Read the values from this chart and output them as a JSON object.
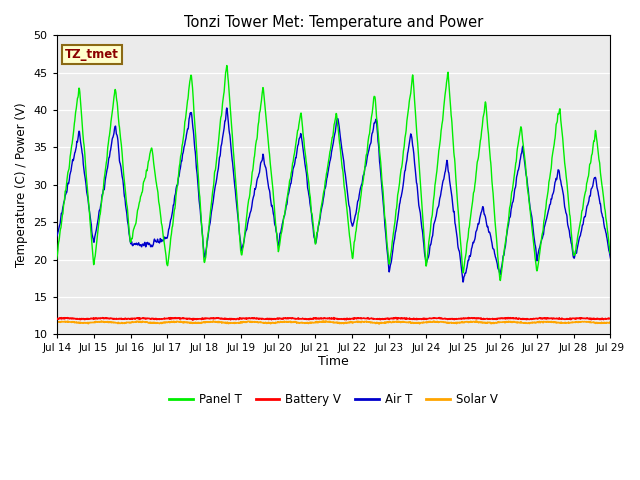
{
  "title": "Tonzi Tower Met: Temperature and Power",
  "xlabel": "Time",
  "ylabel": "Temperature (C) / Power (V)",
  "ylim": [
    10,
    50
  ],
  "yticks": [
    10,
    15,
    20,
    25,
    30,
    35,
    40,
    45,
    50
  ],
  "x_labels": [
    "Jul 14",
    "Jul 15",
    "Jul 16",
    "Jul 17",
    "Jul 18",
    "Jul 19",
    "Jul 20",
    "Jul 21",
    "Jul 22",
    "Jul 23",
    "Jul 24",
    "Jul 25",
    "Jul 26",
    "Jul 27",
    "Jul 28",
    "Jul 29"
  ],
  "annotation": "TZ_tmet",
  "annotation_color": "#8B0000",
  "annotation_bg": "#FFFFCC",
  "annotation_border": "#8B6914",
  "panel_t_color": "#00EE00",
  "air_t_color": "#0000CC",
  "battery_v_color": "#FF0000",
  "solar_v_color": "#FFA500",
  "background_color": "#EBEBEB",
  "legend_labels": [
    "Panel T",
    "Battery V",
    "Air T",
    "Solar V"
  ],
  "legend_colors": [
    "#00EE00",
    "#FF0000",
    "#0000CC",
    "#FFA500"
  ],
  "battery_v_flat": 12.1,
  "solar_v_flat": 11.6,
  "n_days": 15
}
